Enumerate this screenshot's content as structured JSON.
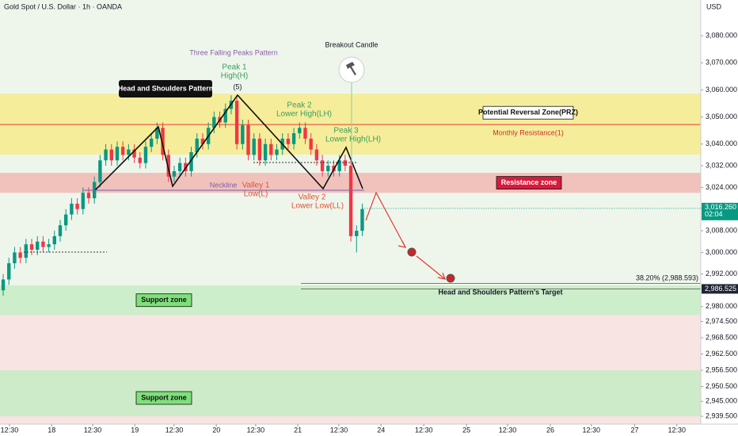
{
  "header": {
    "symbol": "Gold Spot / U.S. Dollar · 1h · OANDA",
    "currency": "USD"
  },
  "chart_data": {
    "type": "candlestick",
    "open": [
      2986,
      2990,
      2996,
      3000,
      2998,
      3003,
      3001,
      3004,
      3002,
      3003,
      3006,
      3010,
      3014,
      3018,
      3016,
      3022,
      3020,
      3026,
      3034,
      3038,
      3034,
      3039,
      3036,
      3038,
      3035,
      3033,
      3039,
      3042,
      3046,
      3036,
      3028,
      3030,
      3033,
      3030,
      3037,
      3042,
      3040,
      3046,
      3050,
      3048,
      3053,
      3056,
      3040,
      3047,
      3036,
      3042,
      3034,
      3040,
      3036,
      3038,
      3042,
      3040,
      3044,
      3046,
      3042,
      3038,
      3034,
      3030,
      3032,
      3030,
      3034,
      3032,
      3006,
      3008
    ],
    "high": [
      2992,
      2998,
      3002,
      3002,
      3005,
      3005,
      3006,
      3006,
      3005,
      3008,
      3012,
      3016,
      3020,
      3020,
      3024,
      3024,
      3028,
      3036,
      3040,
      3040,
      3041,
      3041,
      3040,
      3040,
      3037,
      3041,
      3044,
      3048,
      3048,
      3038,
      3032,
      3035,
      3035,
      3039,
      3044,
      3044,
      3048,
      3052,
      3052,
      3055,
      3058,
      3058,
      3049,
      3049,
      3044,
      3044,
      3042,
      3042,
      3040,
      3044,
      3044,
      3046,
      3048,
      3048,
      3044,
      3040,
      3036,
      3034,
      3034,
      3036,
      3036,
      3034,
      3010,
      3018
    ],
    "low": [
      2984,
      2988,
      2994,
      2996,
      2996,
      2999,
      2999,
      3000,
      3000,
      3001,
      3004,
      3008,
      3012,
      3014,
      3014,
      3018,
      3018,
      3024,
      3032,
      3032,
      3032,
      3034,
      3034,
      3033,
      3031,
      3031,
      3037,
      3040,
      3034,
      3026,
      3026,
      3028,
      3028,
      3028,
      3035,
      3038,
      3038,
      3044,
      3046,
      3046,
      3051,
      3038,
      3038,
      3034,
      3034,
      3032,
      3032,
      3034,
      3034,
      3036,
      3038,
      3038,
      3042,
      3040,
      3036,
      3032,
      3028,
      3028,
      3028,
      3028,
      3030,
      3004,
      3000,
      3006
    ],
    "close": [
      2990,
      2996,
      3000,
      2998,
      3003,
      3001,
      3004,
      3002,
      3003,
      3006,
      3010,
      3014,
      3018,
      3016,
      3022,
      3020,
      3026,
      3034,
      3038,
      3034,
      3039,
      3036,
      3038,
      3035,
      3033,
      3039,
      3042,
      3046,
      3036,
      3028,
      3030,
      3033,
      3030,
      3037,
      3042,
      3040,
      3046,
      3050,
      3048,
      3053,
      3056,
      3040,
      3047,
      3036,
      3042,
      3034,
      3040,
      3036,
      3038,
      3042,
      3040,
      3044,
      3046,
      3042,
      3038,
      3034,
      3030,
      3032,
      3030,
      3034,
      3032,
      3006,
      3008,
      3016
    ],
    "up_color": "#089981",
    "down_color": "#f23645",
    "xlim": [
      -0.56,
      122.4
    ],
    "xticks": [
      {
        "value": 1.1,
        "label": "12:30"
      },
      {
        "value": 8.5,
        "label": "18"
      },
      {
        "value": 15.7,
        "label": "12:30"
      },
      {
        "value": 23.1,
        "label": "19"
      },
      {
        "value": 30,
        "label": "12:30"
      },
      {
        "value": 37.4,
        "label": "20"
      },
      {
        "value": 44.3,
        "label": "12:30"
      },
      {
        "value": 51.7,
        "label": "21"
      },
      {
        "value": 58.9,
        "label": "12:30"
      },
      {
        "value": 66.3,
        "label": "24"
      },
      {
        "value": 73.8,
        "label": "12:30"
      },
      {
        "value": 81.3,
        "label": "25"
      },
      {
        "value": 88.5,
        "label": "12:30"
      },
      {
        "value": 96,
        "label": "26"
      },
      {
        "value": 103.2,
        "label": "12:30"
      },
      {
        "value": 110.8,
        "label": "27"
      },
      {
        "value": 118.2,
        "label": "12:30"
      }
    ],
    "ylim": [
      2936.6,
      3093.2
    ],
    "yticks": [
      {
        "value": 3080,
        "label": "3,080.000"
      },
      {
        "value": 3070,
        "label": "3,070.000"
      },
      {
        "value": 3060,
        "label": "3,060.000"
      },
      {
        "value": 3050,
        "label": "3,050.000"
      },
      {
        "value": 3040,
        "label": "3,040.000"
      },
      {
        "value": 3032,
        "label": "3,032.000"
      },
      {
        "value": 3024,
        "label": "3,024.000"
      },
      {
        "value": 3008,
        "label": "3,008.000"
      },
      {
        "value": 3000,
        "label": "3,000.000"
      },
      {
        "value": 2992,
        "label": "2,992.000"
      },
      {
        "value": 2980,
        "label": "2,980.000"
      },
      {
        "value": 2974.5,
        "label": "2,974.500"
      },
      {
        "value": 2968.5,
        "label": "2,968.500"
      },
      {
        "value": 2962.5,
        "label": "2,962.500"
      },
      {
        "value": 2956.5,
        "label": "2,956.500"
      },
      {
        "value": 2950.5,
        "label": "2,950.500"
      },
      {
        "value": 2945,
        "label": "2,945.000"
      },
      {
        "value": 2939.5,
        "label": "2,939.500"
      }
    ],
    "current_price": {
      "value": 3016.26,
      "label": "3,016.260",
      "countdown": "02:04"
    },
    "target_price": {
      "value": 2986.525,
      "label": "2,986.525"
    },
    "fib_level": {
      "value": 2988.593,
      "label": "38.20% (2,988.593)"
    },
    "monthly_resistance": {
      "value": 3047.2,
      "label": "Monthly Resistance(1)"
    },
    "zones": [
      {
        "label": "Potential Reversal Zone(PRZ)",
        "range": [
          3036.1,
          3058.6
        ],
        "color": "#f7eb8c"
      },
      {
        "label": "Resistance zone",
        "range": [
          3022.0,
          3029.4
        ],
        "color": "#f1b9b4"
      },
      {
        "label": "Support zone",
        "range": [
          2976.9,
          2987.8
        ],
        "color": "#c7ecc4"
      },
      {
        "label": "Support zone",
        "range": [
          2939.5,
          2956.5
        ],
        "color": "#c7ecc4"
      }
    ],
    "annotations": {
      "pattern": "Three Falling Peaks Pattern",
      "hs": "Head and Shoulders Pattern",
      "wave": "(5)",
      "peak1": [
        "Peak 1",
        "High(H)"
      ],
      "peak2": [
        "Peak 2",
        "Lower High(LH)"
      ],
      "peak3": [
        "Peak 3",
        "Lower High(LH)"
      ],
      "valley1": [
        "Valley 1",
        "Low(L)"
      ],
      "valley2": [
        "Valley 2",
        "Lower Low(LL)"
      ],
      "neckline": "Neckline",
      "breakout": "Breakout Candle",
      "target": "Head and Shoulders Pattern's Target"
    }
  }
}
